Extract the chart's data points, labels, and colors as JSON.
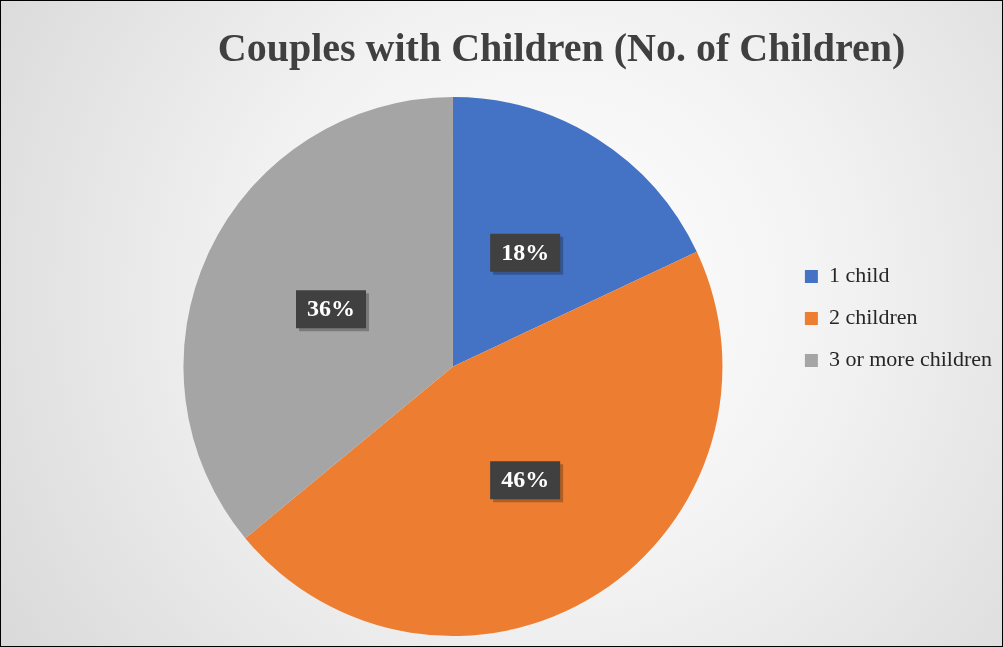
{
  "chart_data": {
    "type": "pie",
    "title": "Couples with Children (No. of Children)",
    "categories": [
      "1 child",
      "2 children",
      "3 or more children"
    ],
    "values": [
      18,
      46,
      36
    ],
    "colors": [
      "#4472c4",
      "#ed7d31",
      "#a5a5a5"
    ],
    "value_labels": [
      "18%",
      "46%",
      "36%"
    ],
    "legend": "right"
  }
}
